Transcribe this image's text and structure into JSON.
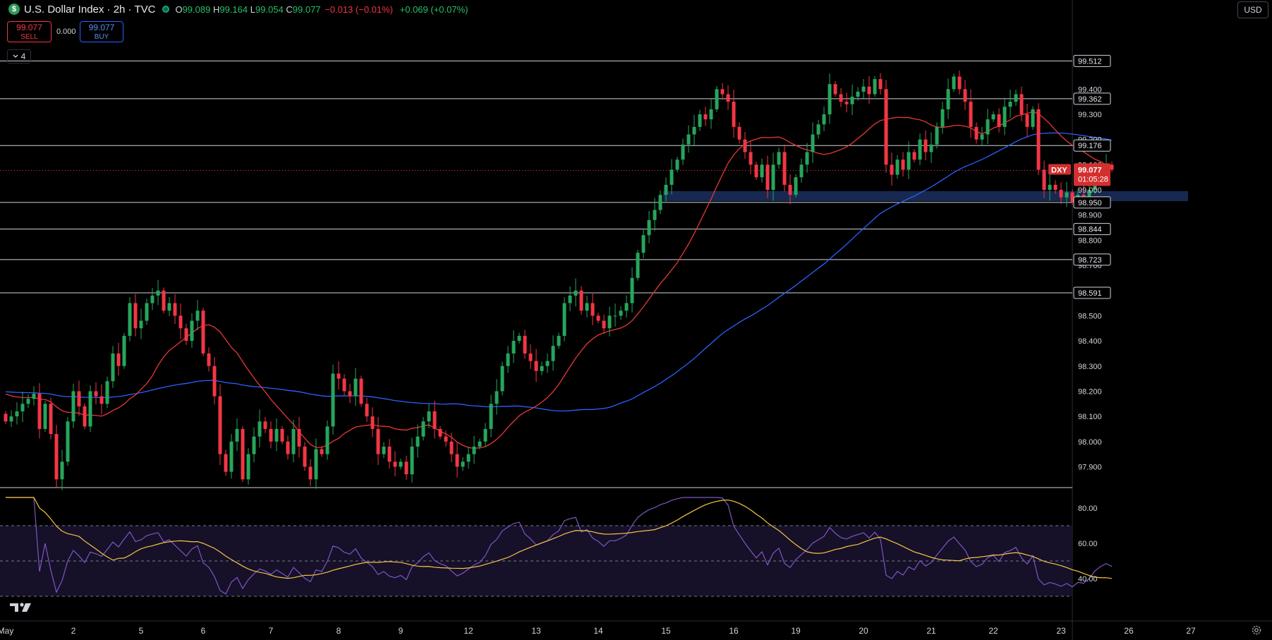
{
  "header": {
    "symbol_icon": "$",
    "title": "U.S. Dollar Index · 2h · TVC",
    "open_label": "O",
    "open": "99.089",
    "high_label": "H",
    "high": "99.164",
    "low_label": "L",
    "low": "99.054",
    "close_label": "C",
    "close": "99.077",
    "change": "−0.013 (−0.01%)",
    "change2": "+0.069 (+0.07%)"
  },
  "trade": {
    "sell_price": "99.077",
    "sell_label": "SELL",
    "spread": "0.000",
    "buy_price": "99.077",
    "buy_label": "BUY"
  },
  "indicators_toggle": {
    "count": "4"
  },
  "currency": "USD",
  "colors": {
    "up": "#26a65b",
    "down": "#f23645",
    "ma_fast": "#e53935",
    "ma_slow": "#2962ff",
    "rsi": "#7e57c2",
    "rsi_ma": "#f5c542",
    "zone": "#1a2c5a",
    "hline": "#d1d4dc"
  },
  "chart_data": {
    "type": "candlestick",
    "interval": "2h",
    "y_range": [
      97.82,
      99.67
    ],
    "yticks": [
      "99.400",
      "99.300",
      "99.200",
      "99.100",
      "99.000",
      "98.900",
      "98.800",
      "98.700",
      "98.600",
      "98.500",
      "98.400",
      "98.300",
      "98.200",
      "98.100",
      "98.000",
      "97.900"
    ],
    "horizontal_levels": [
      99.512,
      99.362,
      99.176,
      98.95,
      98.844,
      98.723,
      98.591
    ],
    "level_labels": [
      "99.512",
      "99.362",
      "99.176",
      "98.950",
      "98.844",
      "98.723",
      "98.591"
    ],
    "support_zone": {
      "low": 98.955,
      "high": 98.995,
      "from_bar": 117,
      "to_bar": 210
    },
    "last_price": {
      "symbol": "DXY",
      "price": "99.077",
      "countdown": "01:05:28",
      "value": 99.077
    },
    "x_labels": [
      {
        "text": "May",
        "bar": 0
      },
      {
        "text": "2",
        "bar": 12
      },
      {
        "text": "5",
        "bar": 24
      },
      {
        "text": "6",
        "bar": 35
      },
      {
        "text": "7",
        "bar": 47
      },
      {
        "text": "8",
        "bar": 59
      },
      {
        "text": "9",
        "bar": 70
      },
      {
        "text": "12",
        "bar": 82
      },
      {
        "text": "13",
        "bar": 94
      },
      {
        "text": "14",
        "bar": 105
      },
      {
        "text": "15",
        "bar": 117
      },
      {
        "text": "16",
        "bar": 129
      },
      {
        "text": "19",
        "bar": 140
      },
      {
        "text": "20",
        "bar": 152
      },
      {
        "text": "21",
        "bar": 164
      },
      {
        "text": "22",
        "bar": 175
      },
      {
        "text": "23",
        "bar": 187
      },
      {
        "text": "26",
        "bar": 199
      },
      {
        "text": "27",
        "bar": 210
      }
    ],
    "close": [
      98.08,
      98.1,
      98.12,
      98.15,
      98.17,
      98.19,
      98.05,
      98.15,
      98.03,
      97.85,
      97.92,
      98.08,
      98.2,
      98.14,
      98.06,
      98.2,
      98.18,
      98.15,
      98.24,
      98.35,
      98.3,
      98.42,
      98.55,
      98.45,
      98.48,
      98.55,
      98.58,
      98.6,
      98.52,
      98.55,
      98.5,
      98.45,
      98.4,
      98.48,
      98.52,
      98.35,
      98.3,
      98.18,
      97.95,
      97.88,
      98.0,
      98.05,
      97.85,
      97.95,
      98.02,
      98.08,
      98.05,
      98.0,
      98.05,
      98.0,
      97.95,
      98.05,
      97.98,
      97.9,
      97.85,
      97.97,
      97.95,
      98.06,
      98.27,
      98.25,
      98.2,
      98.18,
      98.25,
      98.15,
      98.1,
      98.05,
      97.95,
      97.98,
      97.92,
      97.9,
      97.92,
      97.87,
      97.98,
      98.02,
      98.08,
      98.12,
      98.05,
      98.02,
      98.0,
      97.95,
      97.9,
      97.92,
      97.95,
      97.98,
      98.0,
      98.05,
      98.15,
      98.2,
      98.3,
      98.35,
      98.4,
      98.42,
      98.35,
      98.32,
      98.28,
      98.3,
      98.32,
      98.38,
      98.42,
      98.55,
      98.58,
      98.6,
      98.52,
      98.55,
      98.5,
      98.48,
      98.45,
      98.5,
      98.5,
      98.52,
      98.55,
      98.65,
      98.75,
      98.82,
      98.88,
      98.92,
      98.98,
      99.02,
      99.08,
      99.12,
      99.18,
      99.22,
      99.25,
      99.3,
      99.28,
      99.32,
      99.4,
      99.38,
      99.35,
      99.25,
      99.2,
      99.15,
      99.1,
      99.05,
      99.1,
      99.0,
      99.1,
      99.15,
      99.02,
      98.98,
      99.05,
      99.1,
      99.15,
      99.22,
      99.26,
      99.3,
      99.42,
      99.38,
      99.35,
      99.34,
      99.37,
      99.39,
      99.41,
      99.38,
      99.44,
      99.4,
      99.1,
      99.06,
      99.12,
      99.08,
      99.15,
      99.12,
      99.2,
      99.15,
      99.18,
      99.25,
      99.32,
      99.4,
      99.45,
      99.4,
      99.35,
      99.25,
      99.2,
      99.22,
      99.28,
      99.3,
      99.25,
      99.33,
      99.35,
      99.38,
      99.3,
      99.25,
      99.32,
      99.08,
      99.0,
      99.02,
      99.0,
      98.97,
      98.99,
      98.95,
      98.98,
      98.97,
      99.0,
      99.05,
      99.08,
      99.1,
      99.08
    ]
  },
  "rsi": {
    "ticks": [
      "80.00",
      "60.00",
      "40.00"
    ],
    "upper": 70,
    "mid": 50,
    "lower": 30,
    "y_range": [
      20,
      88
    ]
  }
}
